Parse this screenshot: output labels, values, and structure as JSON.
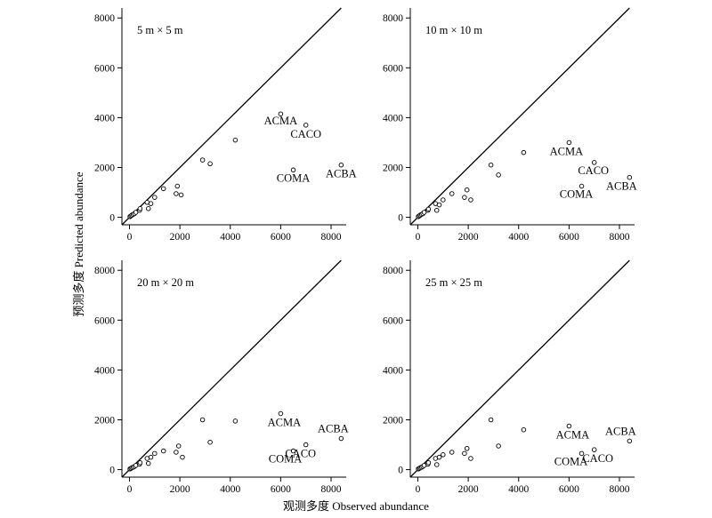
{
  "figure": {
    "xlabel": "观测多度 Observed abundance",
    "ylabel": "预测多度 Predicted abundance"
  },
  "chart_data": [
    {
      "type": "scatter",
      "title": "5 m × 5 m",
      "xlim": [
        -300,
        8600
      ],
      "ylim": [
        -300,
        8400
      ],
      "xticks": [
        0,
        2000,
        4000,
        6000,
        8000
      ],
      "yticks": [
        0,
        2000,
        4000,
        6000,
        8000
      ],
      "reference_line": "y = x",
      "points": [
        {
          "x": 20,
          "y": 30
        },
        {
          "x": 60,
          "y": 60
        },
        {
          "x": 100,
          "y": 90
        },
        {
          "x": 150,
          "y": 120
        },
        {
          "x": 200,
          "y": 150
        },
        {
          "x": 250,
          "y": 200
        },
        {
          "x": 400,
          "y": 280
        },
        {
          "x": 420,
          "y": 350
        },
        {
          "x": 700,
          "y": 600
        },
        {
          "x": 750,
          "y": 350
        },
        {
          "x": 850,
          "y": 550
        },
        {
          "x": 1000,
          "y": 800
        },
        {
          "x": 1350,
          "y": 1150
        },
        {
          "x": 1850,
          "y": 950
        },
        {
          "x": 1900,
          "y": 1250
        },
        {
          "x": 2050,
          "y": 900
        },
        {
          "x": 2900,
          "y": 2300
        },
        {
          "x": 3200,
          "y": 2150
        },
        {
          "x": 4200,
          "y": 3100
        },
        {
          "x": 6000,
          "y": 4150
        },
        {
          "x": 7000,
          "y": 3700
        },
        {
          "x": 6500,
          "y": 1900
        },
        {
          "x": 8400,
          "y": 2100
        }
      ],
      "labels": [
        {
          "text": "ACMA",
          "x": 6000,
          "y": 4150
        },
        {
          "text": "CACO",
          "x": 7000,
          "y": 3700
        },
        {
          "text": "COMA",
          "x": 6500,
          "y": 1900
        },
        {
          "text": "ACBA",
          "x": 8400,
          "y": 2100
        }
      ]
    },
    {
      "type": "scatter",
      "title": "10 m × 10 m",
      "xlim": [
        -300,
        8600
      ],
      "ylim": [
        -300,
        8400
      ],
      "xticks": [
        0,
        2000,
        4000,
        6000,
        8000
      ],
      "yticks": [
        0,
        2000,
        4000,
        6000,
        8000
      ],
      "reference_line": "y = x",
      "points": [
        {
          "x": 20,
          "y": 30
        },
        {
          "x": 60,
          "y": 60
        },
        {
          "x": 100,
          "y": 90
        },
        {
          "x": 150,
          "y": 120
        },
        {
          "x": 200,
          "y": 150
        },
        {
          "x": 250,
          "y": 200
        },
        {
          "x": 400,
          "y": 280
        },
        {
          "x": 420,
          "y": 330
        },
        {
          "x": 700,
          "y": 550
        },
        {
          "x": 750,
          "y": 280
        },
        {
          "x": 850,
          "y": 500
        },
        {
          "x": 1000,
          "y": 700
        },
        {
          "x": 1350,
          "y": 950
        },
        {
          "x": 1850,
          "y": 800
        },
        {
          "x": 1950,
          "y": 1100
        },
        {
          "x": 2100,
          "y": 700
        },
        {
          "x": 2900,
          "y": 2100
        },
        {
          "x": 3200,
          "y": 1700
        },
        {
          "x": 4200,
          "y": 2600
        },
        {
          "x": 6000,
          "y": 3000
        },
        {
          "x": 7000,
          "y": 2200
        },
        {
          "x": 6500,
          "y": 1250
        },
        {
          "x": 8400,
          "y": 1600
        }
      ],
      "labels": [
        {
          "text": "ACMA",
          "x": 6000,
          "y": 3000
        },
        {
          "text": "CACO",
          "x": 7000,
          "y": 2200
        },
        {
          "text": "COMA",
          "x": 6500,
          "y": 1250
        },
        {
          "text": "ACBA",
          "x": 8400,
          "y": 1600
        }
      ]
    },
    {
      "type": "scatter",
      "title": "20 m × 20 m",
      "xlim": [
        -300,
        8600
      ],
      "ylim": [
        -300,
        8400
      ],
      "xticks": [
        0,
        2000,
        4000,
        6000,
        8000
      ],
      "yticks": [
        0,
        2000,
        4000,
        6000,
        8000
      ],
      "reference_line": "y = x",
      "points": [
        {
          "x": 20,
          "y": 30
        },
        {
          "x": 60,
          "y": 50
        },
        {
          "x": 100,
          "y": 80
        },
        {
          "x": 150,
          "y": 100
        },
        {
          "x": 200,
          "y": 130
        },
        {
          "x": 250,
          "y": 170
        },
        {
          "x": 400,
          "y": 220
        },
        {
          "x": 420,
          "y": 280
        },
        {
          "x": 700,
          "y": 450
        },
        {
          "x": 750,
          "y": 250
        },
        {
          "x": 850,
          "y": 500
        },
        {
          "x": 1000,
          "y": 650
        },
        {
          "x": 1350,
          "y": 750
        },
        {
          "x": 1850,
          "y": 700
        },
        {
          "x": 1950,
          "y": 950
        },
        {
          "x": 2100,
          "y": 500
        },
        {
          "x": 2900,
          "y": 2000
        },
        {
          "x": 3200,
          "y": 1100
        },
        {
          "x": 4200,
          "y": 1950
        },
        {
          "x": 6000,
          "y": 2250
        },
        {
          "x": 7000,
          "y": 1000
        },
        {
          "x": 6500,
          "y": 750
        },
        {
          "x": 8400,
          "y": 1250
        }
      ],
      "labels": [
        {
          "text": "ACMA",
          "x": 6000,
          "y": 2250
        },
        {
          "text": "CACO",
          "x": 7000,
          "y": 1000
        },
        {
          "text": "COMA",
          "x": 6500,
          "y": 750
        },
        {
          "text": "ACBA",
          "x": 8400,
          "y": 1250
        }
      ]
    },
    {
      "type": "scatter",
      "title": "25 m × 25 m",
      "xlim": [
        -300,
        8600
      ],
      "ylim": [
        -300,
        8400
      ],
      "xticks": [
        0,
        2000,
        4000,
        6000,
        8000
      ],
      "yticks": [
        0,
        2000,
        4000,
        6000,
        8000
      ],
      "reference_line": "y = x",
      "points": [
        {
          "x": 20,
          "y": 30
        },
        {
          "x": 60,
          "y": 50
        },
        {
          "x": 100,
          "y": 80
        },
        {
          "x": 150,
          "y": 100
        },
        {
          "x": 200,
          "y": 130
        },
        {
          "x": 250,
          "y": 170
        },
        {
          "x": 400,
          "y": 220
        },
        {
          "x": 420,
          "y": 280
        },
        {
          "x": 700,
          "y": 450
        },
        {
          "x": 750,
          "y": 200
        },
        {
          "x": 850,
          "y": 500
        },
        {
          "x": 1000,
          "y": 600
        },
        {
          "x": 1350,
          "y": 700
        },
        {
          "x": 1850,
          "y": 650
        },
        {
          "x": 1950,
          "y": 850
        },
        {
          "x": 2100,
          "y": 450
        },
        {
          "x": 2900,
          "y": 2000
        },
        {
          "x": 3200,
          "y": 950
        },
        {
          "x": 4200,
          "y": 1600
        },
        {
          "x": 6000,
          "y": 1750
        },
        {
          "x": 7000,
          "y": 800
        },
        {
          "x": 6500,
          "y": 650
        },
        {
          "x": 8400,
          "y": 1150
        }
      ],
      "labels": [
        {
          "text": "ACMA",
          "x": 6000,
          "y": 1750
        },
        {
          "text": "CACO",
          "x": 7000,
          "y": 800
        },
        {
          "text": "COMA",
          "x": 6500,
          "y": 650
        },
        {
          "text": "ACBA",
          "x": 8400,
          "y": 1150
        }
      ]
    }
  ]
}
